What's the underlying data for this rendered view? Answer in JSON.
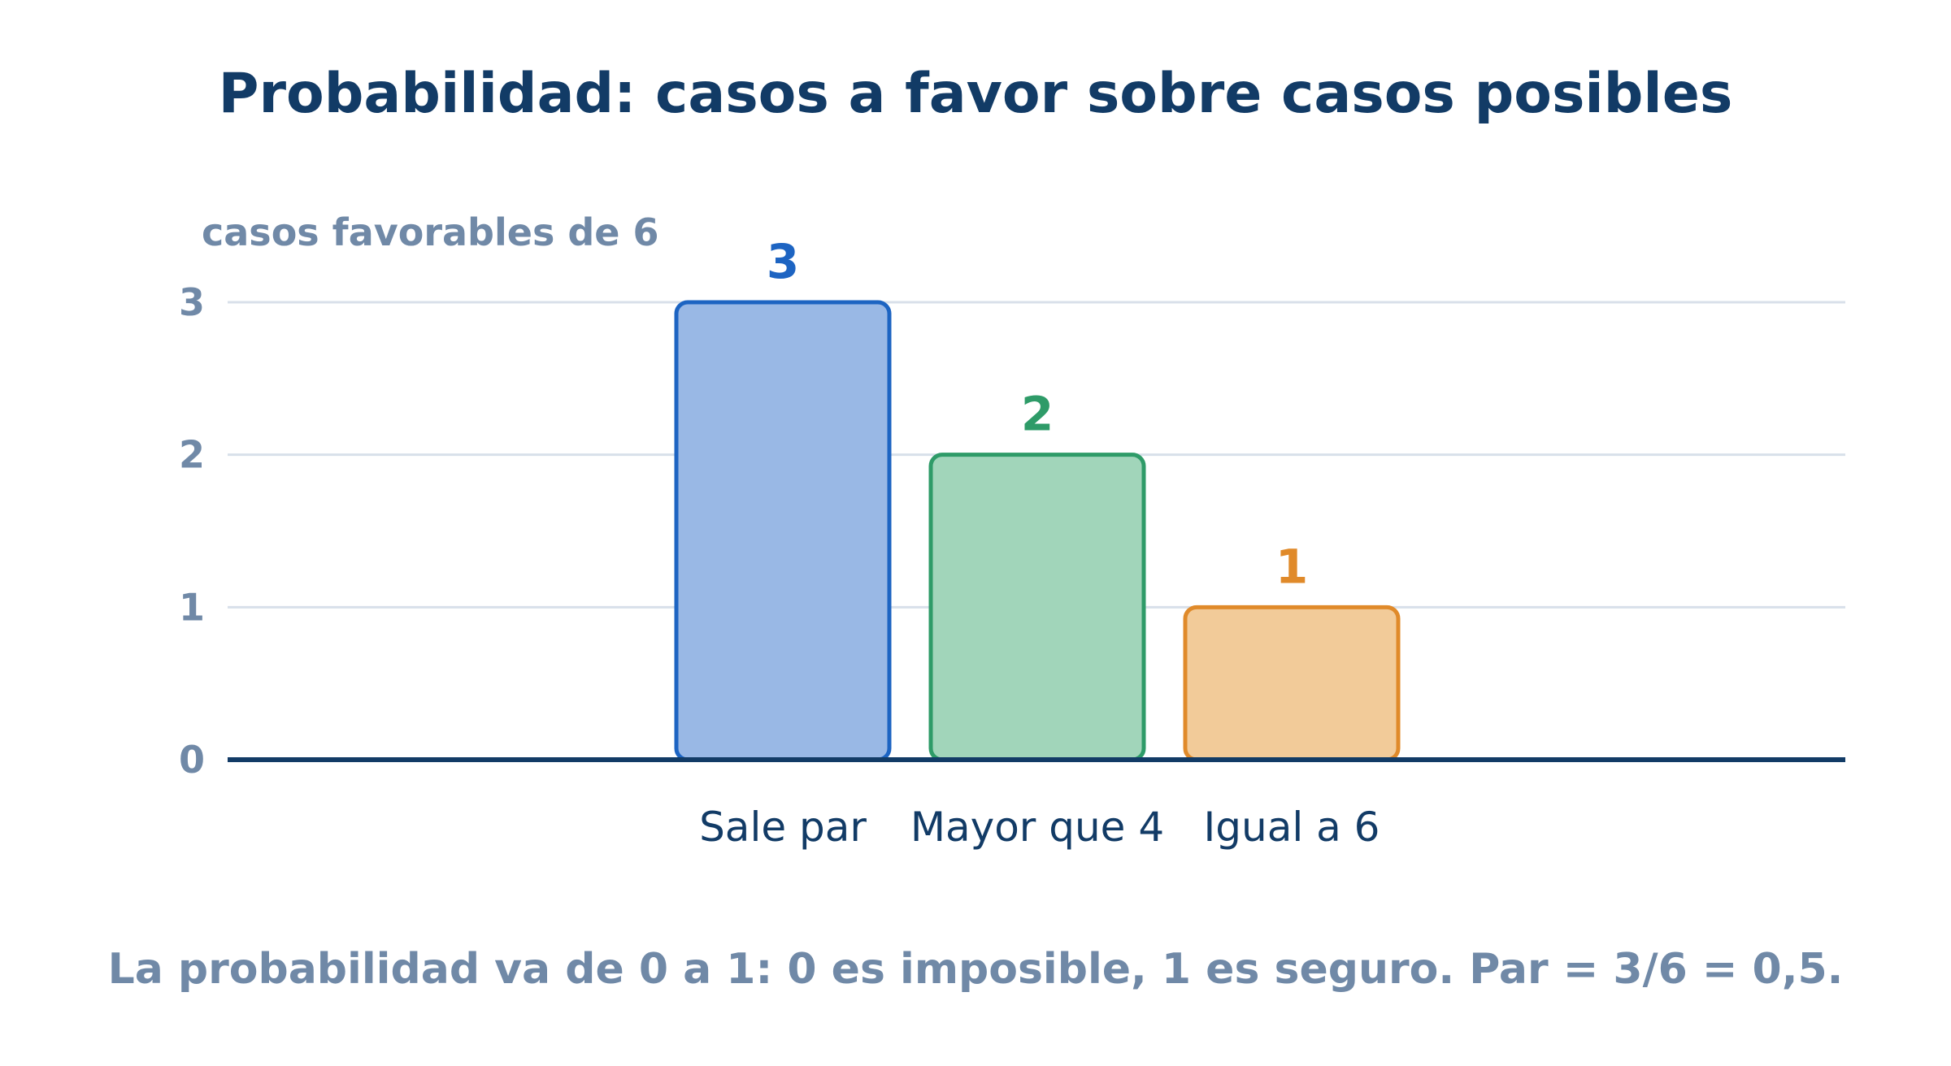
{
  "chart_data": {
    "type": "bar",
    "title": "Probabilidad: casos a favor sobre casos posibles",
    "ylabel": "casos favorables de 6",
    "xlabel": "",
    "categories": [
      "Sale par",
      "Mayor que 4",
      "Igual a 6"
    ],
    "values": [
      3,
      2,
      1
    ],
    "value_labels": [
      "3",
      "2",
      "1"
    ],
    "yticks": [
      0,
      1,
      2,
      3
    ],
    "ylim": [
      0,
      3
    ],
    "grid": true,
    "colors": {
      "fills": [
        "#99b8e5",
        "#a1d5ba",
        "#f2cb99"
      ],
      "strokes": [
        "#1d64c2",
        "#2e9b68",
        "#e08a2a"
      ],
      "labels": [
        "#1d64c2",
        "#2e9b68",
        "#e08a2a"
      ],
      "axis": "#123b66",
      "grid": "#d8e0ea",
      "title": "#123b66",
      "muted": "#7089a7"
    },
    "caption": "La probabilidad va de 0 a 1: 0 es imposible, 1 es seguro. Par = 3/6 = 0,5."
  }
}
